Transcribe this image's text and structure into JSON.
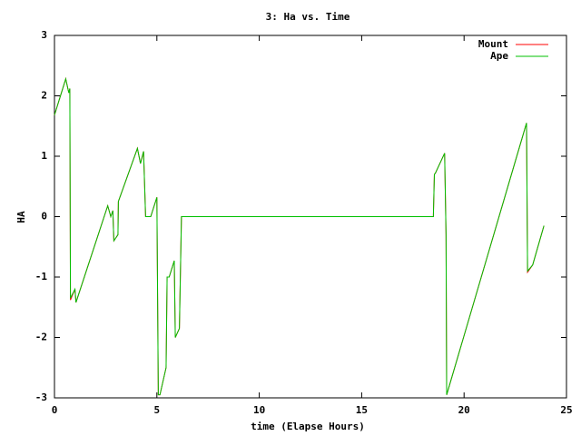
{
  "chart_data": {
    "type": "line",
    "title": "3: Ha vs. Time",
    "xlabel": "time (Elapse Hours)",
    "ylabel": "HA",
    "x": [
      0,
      0.55,
      0.7,
      0.75,
      0.78,
      1.0,
      1.05,
      2.6,
      2.75,
      2.85,
      2.9,
      3.1,
      3.12,
      4.05,
      4.2,
      4.35,
      4.45,
      4.7,
      5.0,
      5.07,
      5.15,
      5.45,
      5.5,
      5.6,
      5.85,
      5.9,
      6.1,
      6.2,
      18.5,
      18.55,
      18.6,
      19.05,
      19.12,
      19.15,
      23.05,
      23.1,
      23.35,
      23.9
    ],
    "series": [
      {
        "name": "Mount",
        "color": "#ff0000",
        "values": [
          1.68,
          2.28,
          2.05,
          2.12,
          -1.38,
          -1.2,
          -1.42,
          0.18,
          0,
          0.1,
          -0.4,
          -0.3,
          0.25,
          1.13,
          0.88,
          1.08,
          0,
          0,
          0.32,
          -2.95,
          -2.95,
          -2.5,
          -1.0,
          -1.0,
          -0.73,
          -2.0,
          -1.85,
          0,
          0,
          0.7,
          0.72,
          1.05,
          -0.3,
          -2.95,
          1.55,
          -0.92,
          -0.8,
          -0.15
        ]
      },
      {
        "name": "Ape",
        "color": "#00c000",
        "values": [
          1.68,
          2.28,
          2.05,
          2.12,
          -1.35,
          -1.2,
          -1.42,
          0.18,
          0,
          0.1,
          -0.4,
          -0.3,
          0.25,
          1.13,
          0.88,
          1.08,
          0,
          0,
          0.32,
          -2.95,
          -2.95,
          -2.5,
          -1.0,
          -1.0,
          -0.73,
          -2.0,
          -1.85,
          0,
          0,
          0.7,
          0.72,
          1.05,
          -0.3,
          -2.95,
          1.55,
          -0.9,
          -0.8,
          -0.15
        ]
      }
    ],
    "xlim": [
      0,
      25
    ],
    "xticks": [
      0,
      5,
      10,
      15,
      20,
      25
    ],
    "ylim": [
      -3,
      3
    ],
    "yticks": [
      -3,
      -2,
      -1,
      0,
      1,
      2,
      3
    ],
    "legend": "top-right"
  }
}
